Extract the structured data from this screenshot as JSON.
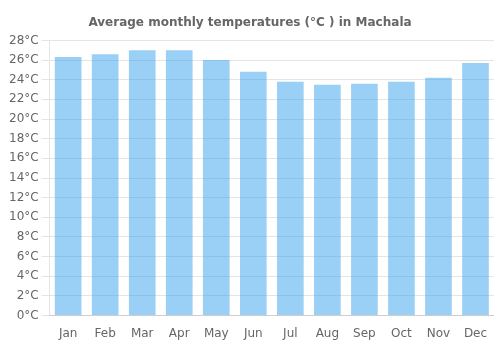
{
  "chart_data": {
    "type": "bar",
    "title": "Average monthly temperatures (°C ) in Machala",
    "categories": [
      "Jan",
      "Feb",
      "Mar",
      "Apr",
      "May",
      "Jun",
      "Jul",
      "Aug",
      "Sep",
      "Oct",
      "Nov",
      "Dec"
    ],
    "values": [
      26.3,
      26.6,
      27.0,
      27.0,
      26.0,
      24.8,
      23.8,
      23.5,
      23.6,
      23.8,
      24.2,
      25.7
    ],
    "ylim": [
      0,
      28
    ],
    "yticks": [
      {
        "value": 0,
        "label": "0°C"
      },
      {
        "value": 2,
        "label": "2°C"
      },
      {
        "value": 4,
        "label": "4°C"
      },
      {
        "value": 6,
        "label": "6°C"
      },
      {
        "value": 8,
        "label": "8°C"
      },
      {
        "value": 10,
        "label": "10°C"
      },
      {
        "value": 12,
        "label": "12°C"
      },
      {
        "value": 14,
        "label": "14°C"
      },
      {
        "value": 16,
        "label": "16°C"
      },
      {
        "value": 18,
        "label": "18°C"
      },
      {
        "value": 20,
        "label": "20°C"
      },
      {
        "value": 22,
        "label": "22°C"
      },
      {
        "value": 24,
        "label": "24°C"
      },
      {
        "value": 26,
        "label": "26°C"
      },
      {
        "value": 28,
        "label": "28°C"
      }
    ],
    "grid": true
  }
}
